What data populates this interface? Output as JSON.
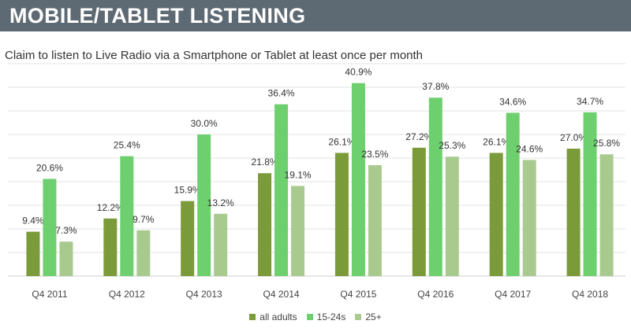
{
  "header": {
    "title": "MOBILE/TABLET LISTENING"
  },
  "colors": {
    "header_bg": "#5e6a73",
    "all_adults": "#7b9a3a",
    "age_15_24": "#6ecf6e",
    "age_25_plus": "#a9ca8e"
  },
  "chart_data": {
    "type": "bar",
    "title": "Claim to listen to Live Radio via a Smartphone or Tablet at least once per month",
    "categories": [
      "Q4 2011",
      "Q4 2012",
      "Q4 2013",
      "Q4 2014",
      "Q4 2015",
      "Q4 2016",
      "Q4 2017",
      "Q4 2018"
    ],
    "series": [
      {
        "name": "all adults",
        "values": [
          9.4,
          12.2,
          15.9,
          21.8,
          26.1,
          27.2,
          26.1,
          27.0
        ],
        "labels": [
          "9.4%",
          "12.2%",
          "15.9%",
          "21.8%",
          "26.1%",
          "27.2%",
          "26.1%",
          "27.0%"
        ]
      },
      {
        "name": "15-24s",
        "values": [
          20.6,
          25.4,
          30.0,
          36.4,
          40.9,
          37.8,
          34.6,
          34.7
        ],
        "labels": [
          "20.6%",
          "25.4%",
          "30.0%",
          "36.4%",
          "40.9%",
          "37.8%",
          "34.6%",
          "34.7%"
        ]
      },
      {
        "name": "25+",
        "values": [
          7.3,
          9.7,
          13.2,
          19.1,
          23.5,
          25.3,
          24.6,
          25.8
        ],
        "labels": [
          "7.3%",
          "9.7%",
          "13.2%",
          "19.1%",
          "23.5%",
          "25.3%",
          "24.6%",
          "25.8%"
        ]
      }
    ],
    "ylim": [
      0,
      45
    ],
    "grid": true,
    "legend_position": "bottom"
  }
}
